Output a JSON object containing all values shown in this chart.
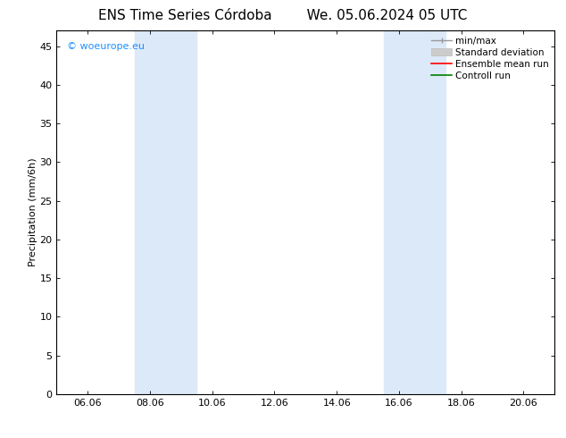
{
  "title_left": "ENS Time Series Córdoba",
  "title_right": "We. 05.06.2024 05 UTC",
  "ylabel": "Precipitation (mm/6h)",
  "watermark": "© woeurope.eu",
  "xtick_labels": [
    "06.06",
    "08.06",
    "10.06",
    "12.06",
    "14.06",
    "16.06",
    "18.06",
    "20.06"
  ],
  "xtick_positions": [
    0,
    2,
    4,
    6,
    8,
    10,
    12,
    14
  ],
  "xlim": [
    -1,
    15
  ],
  "ylim": [
    0,
    47
  ],
  "yticks": [
    0,
    5,
    10,
    15,
    20,
    25,
    30,
    35,
    40,
    45
  ],
  "shade_bands": [
    {
      "xmin": 1.5,
      "xmax": 3.5
    },
    {
      "xmin": 9.5,
      "xmax": 11.5
    }
  ],
  "shade_color": "#dce9f8",
  "background_color": "#ffffff",
  "watermark_color": "#1e90ff",
  "title_fontsize": 11,
  "axis_fontsize": 8,
  "tick_fontsize": 8,
  "legend_fontsize": 7.5
}
